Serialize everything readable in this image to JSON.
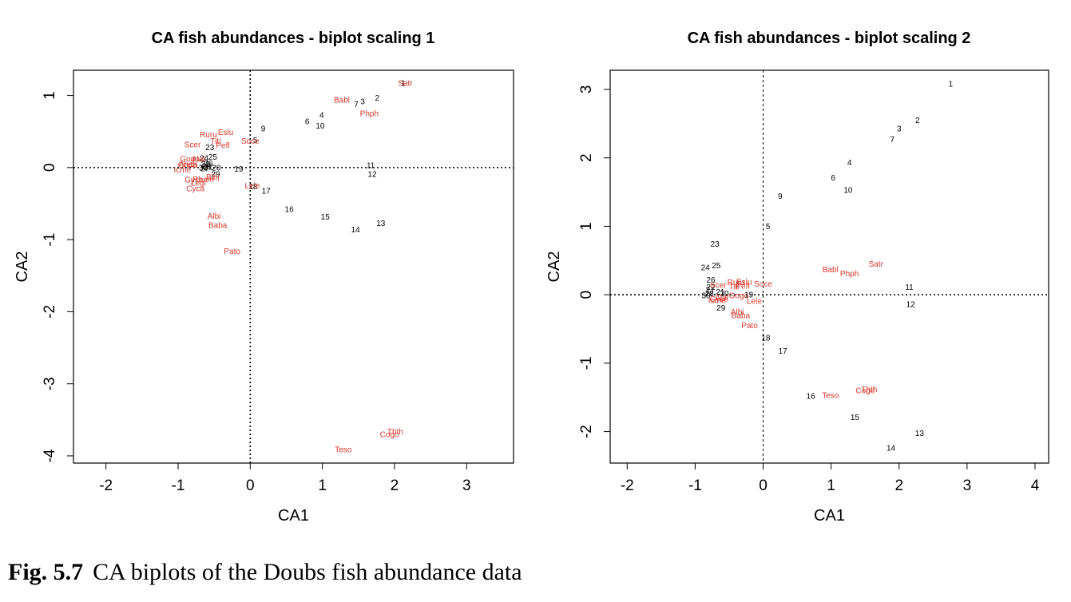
{
  "caption": {
    "label": "Fig. 5.7",
    "text": "CA biplots of the Doubs fish abundance data"
  },
  "colors": {
    "species": "#d9372b",
    "sites": "#000000"
  },
  "chart_data": [
    {
      "type": "scatter",
      "title": "CA fish abundances - biplot scaling 1",
      "xlabel": "CA1",
      "ylabel": "CA2",
      "xlim": [
        -2.45,
        3.65
      ],
      "ylim": [
        -4.1,
        1.35
      ],
      "xticks": [
        -2,
        -1,
        0,
        1,
        2,
        3
      ],
      "xtick_labels": [
        "-2",
        "-1",
        "0",
        "1",
        "2",
        "3"
      ],
      "yticks": [
        1,
        0,
        -1,
        -2,
        -3,
        -4
      ],
      "ytick_labels": [
        "1",
        "0",
        "-1",
        "-2",
        "-3",
        "-4"
      ],
      "ref_lines": {
        "x": 0,
        "y": 0,
        "style": "dotted"
      },
      "sites": [
        {
          "label": "1",
          "x": 2.12,
          "y": 1.17
        },
        {
          "label": "2",
          "x": 1.76,
          "y": 0.97
        },
        {
          "label": "3",
          "x": 1.56,
          "y": 0.92
        },
        {
          "label": "4",
          "x": 0.99,
          "y": 0.73
        },
        {
          "label": "5",
          "x": 0.07,
          "y": 0.38
        },
        {
          "label": "6",
          "x": 0.79,
          "y": 0.64
        },
        {
          "label": "7",
          "x": 1.47,
          "y": 0.88
        },
        {
          "label": "9",
          "x": 0.18,
          "y": 0.54
        },
        {
          "label": "10",
          "x": 0.97,
          "y": 0.58
        },
        {
          "label": "11",
          "x": 1.67,
          "y": 0.03
        },
        {
          "label": "12",
          "x": 1.69,
          "y": -0.09
        },
        {
          "label": "13",
          "x": 1.81,
          "y": -0.77
        },
        {
          "label": "14",
          "x": 1.46,
          "y": -0.86
        },
        {
          "label": "15",
          "x": 1.04,
          "y": -0.68
        },
        {
          "label": "16",
          "x": 0.54,
          "y": -0.58
        },
        {
          "label": "17",
          "x": 0.22,
          "y": -0.32
        },
        {
          "label": "18",
          "x": 0.04,
          "y": -0.26
        },
        {
          "label": "19",
          "x": -0.16,
          "y": -0.02
        },
        {
          "label": "20",
          "x": -0.47,
          "y": 0.0
        },
        {
          "label": "21",
          "x": -0.58,
          "y": 0.01
        },
        {
          "label": "22",
          "x": -0.62,
          "y": 0.05
        },
        {
          "label": "23",
          "x": -0.56,
          "y": 0.28
        },
        {
          "label": "24",
          "x": -0.64,
          "y": 0.13
        },
        {
          "label": "25",
          "x": -0.52,
          "y": 0.15
        },
        {
          "label": "26",
          "x": -0.58,
          "y": 0.06
        },
        {
          "label": "27",
          "x": -0.63,
          "y": -0.01
        },
        {
          "label": "28",
          "x": -0.61,
          "y": 0.02
        },
        {
          "label": "29",
          "x": -0.48,
          "y": -0.09
        },
        {
          "label": "30",
          "x": -0.65,
          "y": 0.0
        }
      ],
      "species": [
        {
          "label": "Satr",
          "x": 2.15,
          "y": 1.17
        },
        {
          "label": "Babl",
          "x": 1.27,
          "y": 0.94
        },
        {
          "label": "Phph",
          "x": 1.65,
          "y": 0.75
        },
        {
          "label": "Ruru",
          "x": -0.58,
          "y": 0.46
        },
        {
          "label": "Eslu",
          "x": -0.34,
          "y": 0.49
        },
        {
          "label": "Scer",
          "x": -0.8,
          "y": 0.32
        },
        {
          "label": "Titi",
          "x": -0.48,
          "y": 0.37
        },
        {
          "label": "Pefl",
          "x": -0.38,
          "y": 0.31
        },
        {
          "label": "Soce",
          "x": 0.0,
          "y": 0.37
        },
        {
          "label": "Gogo",
          "x": -0.84,
          "y": 0.12
        },
        {
          "label": "Alal",
          "x": -0.72,
          "y": 0.12
        },
        {
          "label": "Anan",
          "x": -0.86,
          "y": 0.05
        },
        {
          "label": "Icme",
          "x": -0.94,
          "y": -0.03
        },
        {
          "label": "Chna",
          "x": -0.87,
          "y": 0.04
        },
        {
          "label": "Gyce",
          "x": -0.78,
          "y": -0.17
        },
        {
          "label": "Rham",
          "x": -0.65,
          "y": -0.16
        },
        {
          "label": "Legi",
          "x": -0.72,
          "y": -0.21
        },
        {
          "label": "Blbj",
          "x": -0.52,
          "y": -0.13
        },
        {
          "label": "Cyca",
          "x": -0.76,
          "y": -0.29
        },
        {
          "label": "Lele",
          "x": 0.03,
          "y": -0.25
        },
        {
          "label": "Albi",
          "x": -0.5,
          "y": -0.67
        },
        {
          "label": "Baba",
          "x": -0.45,
          "y": -0.8
        },
        {
          "label": "Pato",
          "x": -0.25,
          "y": -1.16
        },
        {
          "label": "Thth",
          "x": 2.01,
          "y": -3.66
        },
        {
          "label": "Cogo",
          "x": 1.93,
          "y": -3.7
        },
        {
          "label": "Teso",
          "x": 1.29,
          "y": -3.91
        }
      ]
    },
    {
      "type": "scatter",
      "title": "CA fish abundances - biplot scaling 2",
      "xlabel": "CA1",
      "ylabel": "CA2",
      "xlim": [
        -2.25,
        4.2
      ],
      "ylim": [
        -2.46,
        3.28
      ],
      "xticks": [
        -2,
        -1,
        0,
        1,
        2,
        3,
        4
      ],
      "xtick_labels": [
        "-2",
        "-1",
        "0",
        "1",
        "2",
        "3",
        "4"
      ],
      "yticks": [
        3,
        2,
        1,
        0,
        -1,
        -2
      ],
      "ytick_labels": [
        "3",
        "2",
        "1",
        "0",
        "-1",
        "-2"
      ],
      "ref_lines": {
        "x": 0,
        "y": 0,
        "style": "dotted"
      },
      "sites": [
        {
          "label": "1",
          "x": 2.76,
          "y": 3.08
        },
        {
          "label": "2",
          "x": 2.27,
          "y": 2.55
        },
        {
          "label": "3",
          "x": 2.0,
          "y": 2.43
        },
        {
          "label": "7",
          "x": 1.9,
          "y": 2.27
        },
        {
          "label": "4",
          "x": 1.27,
          "y": 1.93
        },
        {
          "label": "6",
          "x": 1.03,
          "y": 1.71
        },
        {
          "label": "10",
          "x": 1.25,
          "y": 1.53
        },
        {
          "label": "9",
          "x": 0.25,
          "y": 1.44
        },
        {
          "label": "5",
          "x": 0.07,
          "y": 1.0
        },
        {
          "label": "23",
          "x": -0.71,
          "y": 0.74
        },
        {
          "label": "25",
          "x": -0.69,
          "y": 0.43
        },
        {
          "label": "24",
          "x": -0.85,
          "y": 0.4
        },
        {
          "label": "26",
          "x": -0.77,
          "y": 0.22
        },
        {
          "label": "22",
          "x": -0.77,
          "y": 0.11
        },
        {
          "label": "27",
          "x": -0.78,
          "y": 0.07
        },
        {
          "label": "28",
          "x": -0.79,
          "y": 0.02
        },
        {
          "label": "30",
          "x": -0.84,
          "y": -0.01
        },
        {
          "label": "21",
          "x": -0.63,
          "y": 0.04
        },
        {
          "label": "20",
          "x": -0.57,
          "y": 0.02
        },
        {
          "label": "29",
          "x": -0.62,
          "y": -0.19
        },
        {
          "label": "19",
          "x": -0.21,
          "y": 0.0
        },
        {
          "label": "11",
          "x": 2.15,
          "y": 0.11
        },
        {
          "label": "12",
          "x": 2.17,
          "y": -0.14
        },
        {
          "label": "18",
          "x": 0.04,
          "y": -0.63
        },
        {
          "label": "17",
          "x": 0.29,
          "y": -0.82
        },
        {
          "label": "16",
          "x": 0.7,
          "y": -1.48
        },
        {
          "label": "15",
          "x": 1.35,
          "y": -1.79
        },
        {
          "label": "13",
          "x": 2.3,
          "y": -2.02
        },
        {
          "label": "14",
          "x": 1.88,
          "y": -2.24
        }
      ],
      "species": [
        {
          "label": "Satr",
          "x": 1.66,
          "y": 0.45
        },
        {
          "label": "Babl",
          "x": 0.99,
          "y": 0.37
        },
        {
          "label": "Phph",
          "x": 1.27,
          "y": 0.31
        },
        {
          "label": "Eslu",
          "x": -0.28,
          "y": 0.19
        },
        {
          "label": "Ruru",
          "x": -0.4,
          "y": 0.18
        },
        {
          "label": "Soce",
          "x": 0.0,
          "y": 0.16
        },
        {
          "label": "Scer",
          "x": -0.66,
          "y": 0.14
        },
        {
          "label": "Pefl",
          "x": -0.3,
          "y": 0.13
        },
        {
          "label": "Titi",
          "x": -0.43,
          "y": 0.12
        },
        {
          "label": "Gogo",
          "x": -0.36,
          "y": -0.01
        },
        {
          "label": "Alal",
          "x": -0.61,
          "y": -0.04
        },
        {
          "label": "Gyce",
          "x": -0.65,
          "y": -0.06
        },
        {
          "label": "Icme",
          "x": -0.68,
          "y": -0.08
        },
        {
          "label": "Lele",
          "x": -0.13,
          "y": -0.09
        },
        {
          "label": "Albi",
          "x": -0.38,
          "y": -0.25
        },
        {
          "label": "Baba",
          "x": -0.33,
          "y": -0.3
        },
        {
          "label": "Pato",
          "x": -0.2,
          "y": -0.45
        },
        {
          "label": "Thth",
          "x": 1.56,
          "y": -1.38
        },
        {
          "label": "Cogo",
          "x": 1.5,
          "y": -1.4
        },
        {
          "label": "Teso",
          "x": 0.99,
          "y": -1.47
        }
      ]
    }
  ]
}
